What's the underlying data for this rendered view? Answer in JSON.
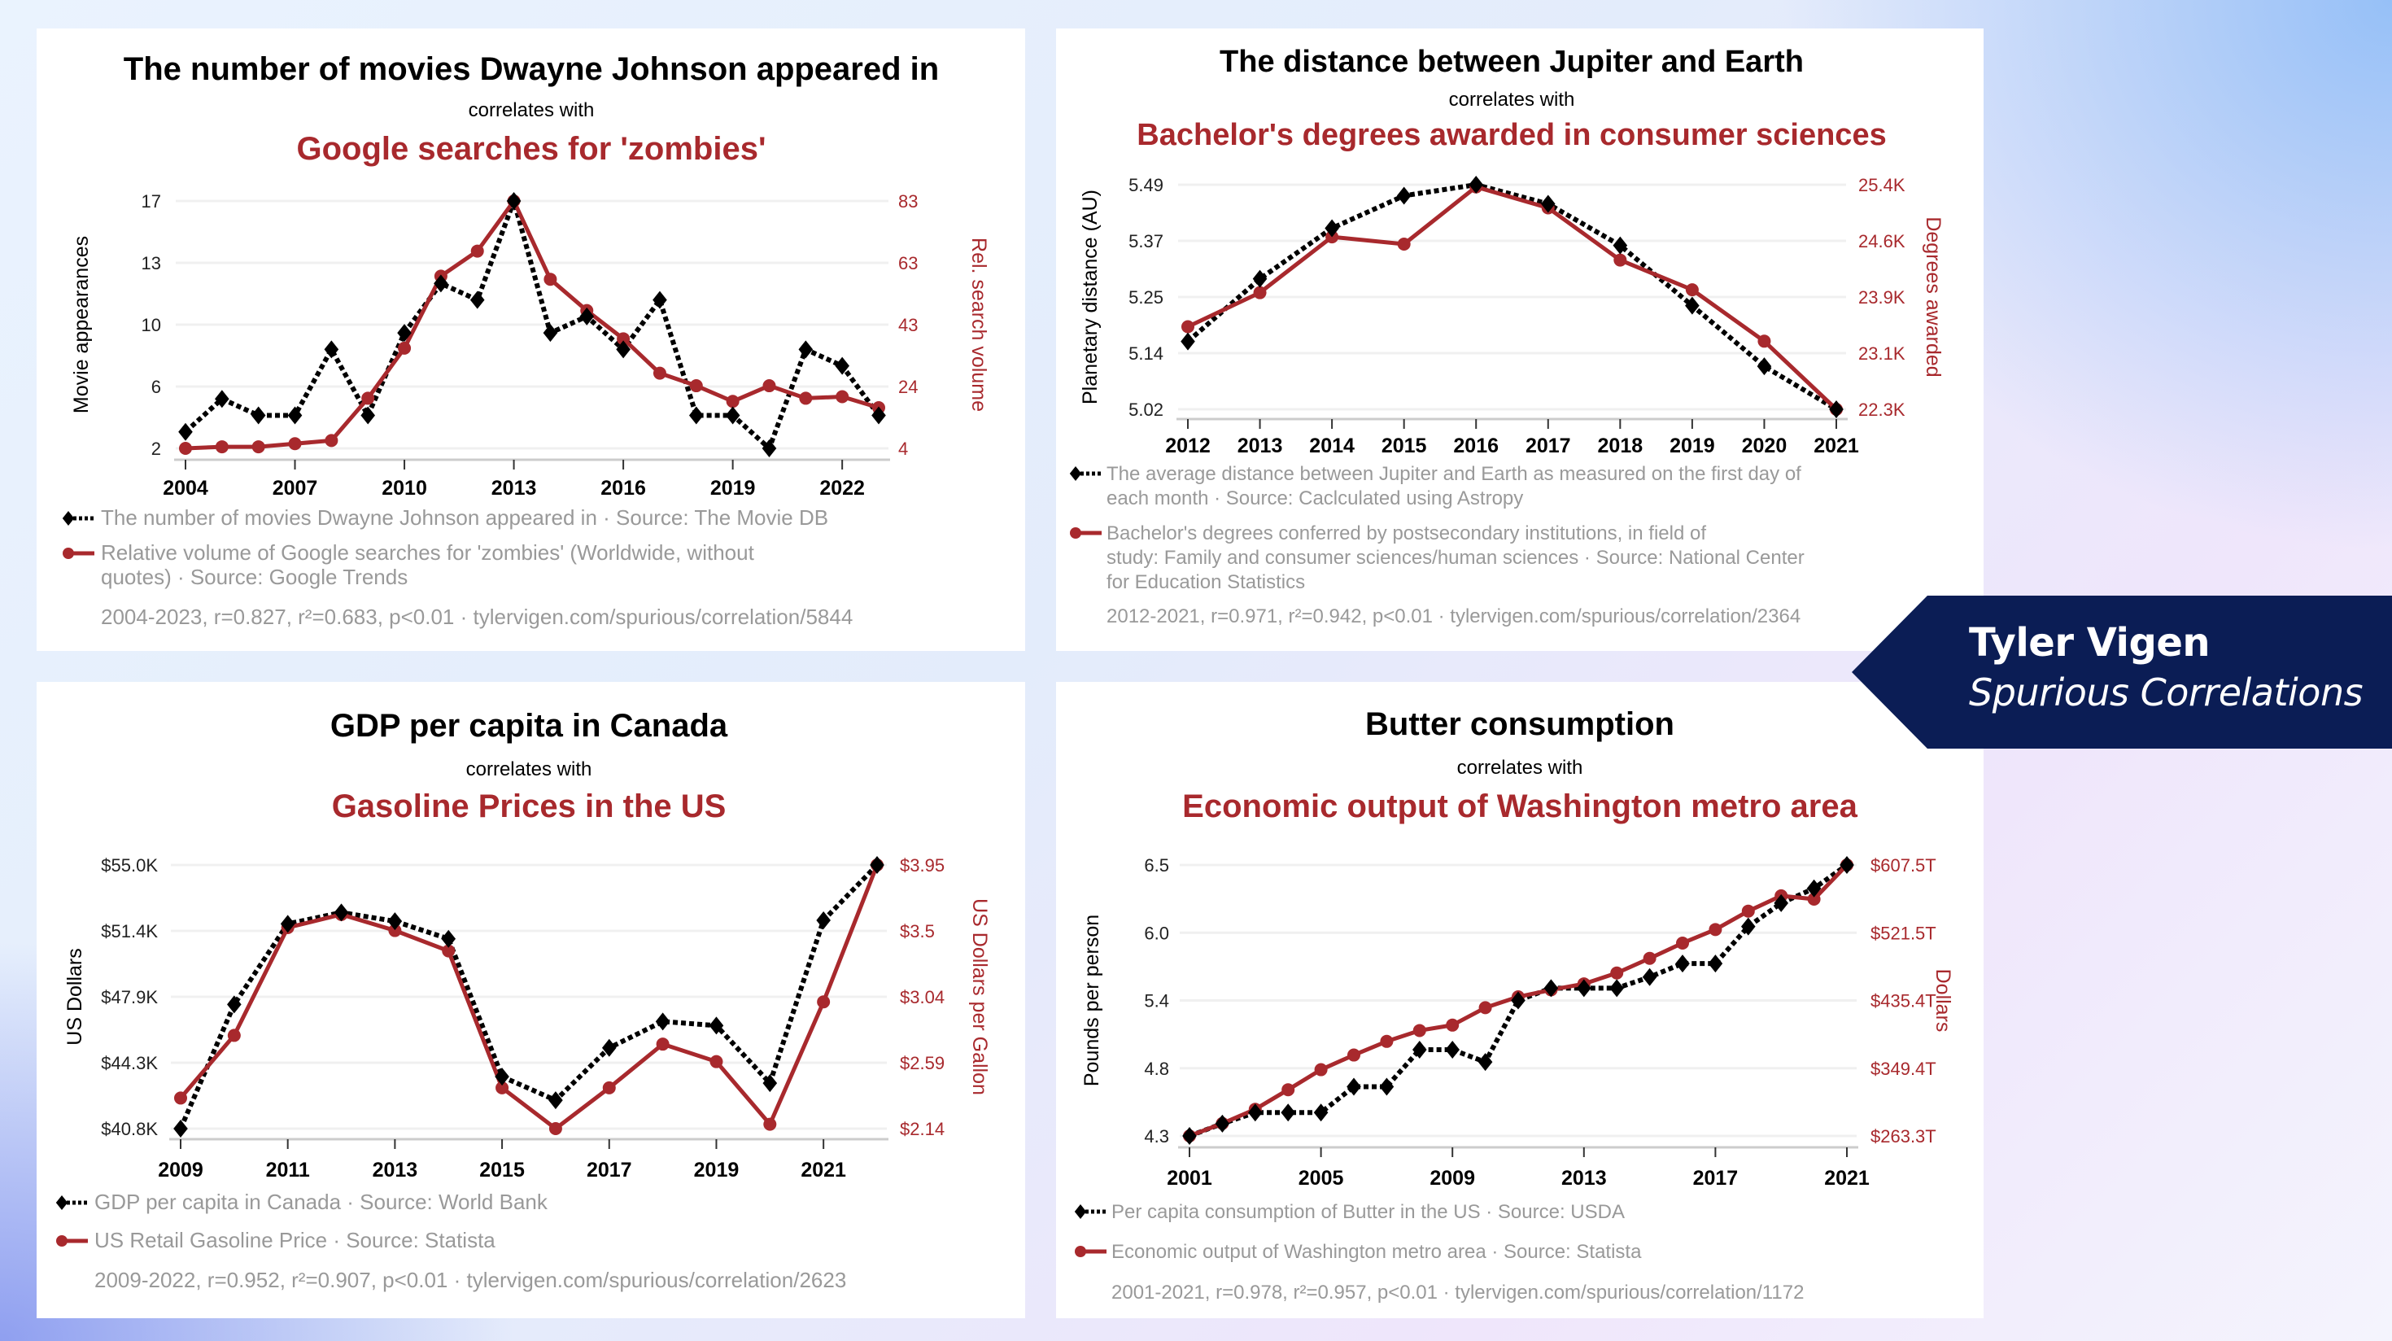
{
  "banner": {
    "author": "Tyler Vigen",
    "subtitle": "Spurious Correlations",
    "color": "#0b1d55"
  },
  "colors": {
    "series_black": "#000000",
    "series_red": "#a8292d",
    "legend_text": "#999999",
    "grid": "#f0f0f0"
  },
  "chart_data": [
    {
      "type": "line",
      "title": "The number of movies Dwayne Johnson appeared in",
      "correlates_label": "correlates with",
      "subtitle": "Google searches for 'zombies'",
      "x": [
        2004,
        2005,
        2006,
        2007,
        2008,
        2009,
        2010,
        2011,
        2012,
        2013,
        2014,
        2015,
        2016,
        2017,
        2018,
        2019,
        2020,
        2021,
        2022,
        2023
      ],
      "xticks": [
        "2004",
        "2007",
        "2010",
        "2013",
        "2016",
        "2019",
        "2022"
      ],
      "ylabel": "Movie appearances",
      "ylim": [
        2,
        17
      ],
      "yticks": [
        "2",
        "6",
        "10",
        "13",
        "17"
      ],
      "ylabel_right": "Rel. search volume",
      "ylim_right": [
        4,
        83
      ],
      "yticks_right": [
        "4",
        "24",
        "43",
        "63",
        "83"
      ],
      "grid": true,
      "series": [
        {
          "name": "The number of movies Dwayne Johnson appeared in · Source: The Movie DB",
          "axis": "left",
          "style": "dashed-diamond",
          "values": [
            3,
            5,
            4,
            4,
            8,
            4,
            9,
            12,
            11,
            17,
            9,
            10,
            8,
            11,
            4,
            4,
            2,
            8,
            7,
            4
          ]
        },
        {
          "name": "Relative volume of Google searches for 'zombies' (Worldwide, without quotes) · Source: Google Trends",
          "axis": "right",
          "style": "solid-circle",
          "values": [
            4,
            4.5,
            4.5,
            5.5,
            6.5,
            20,
            36,
            59,
            67,
            83,
            58,
            48,
            39,
            28,
            24,
            19,
            24,
            20,
            20.5,
            17
          ]
        }
      ],
      "legend": [
        [
          "The number of movies Dwayne Johnson appeared in · Source: The Movie DB"
        ],
        [
          "Relative volume of Google searches for 'zombies' (Worldwide, without",
          "quotes) · Source: Google Trends"
        ]
      ],
      "stats": "2004-2023, r=0.827, r²=0.683, p<0.01 · tylervigen.com/spurious/correlation/5844"
    },
    {
      "type": "line",
      "title": "The distance between Jupiter and Earth",
      "correlates_label": "correlates with",
      "subtitle": "Bachelor's degrees awarded in consumer sciences",
      "x": [
        2012,
        2013,
        2014,
        2015,
        2016,
        2017,
        2018,
        2019,
        2020,
        2021
      ],
      "xticks": [
        "2012",
        "2013",
        "2014",
        "2015",
        "2016",
        "2017",
        "2018",
        "2019",
        "2020",
        "2021"
      ],
      "ylabel": "Planetary distance (AU)",
      "ylim": [
        5.02,
        5.49
      ],
      "yticks": [
        "5.02",
        "5.14",
        "5.25",
        "5.37",
        "5.49"
      ],
      "ylabel_right": "Degrees awarded",
      "ylim_right": [
        22300,
        25400
      ],
      "yticks_right": [
        "22.3K",
        "23.1K",
        "23.9K",
        "24.6K",
        "25.4K"
      ],
      "grid": true,
      "series": [
        {
          "name": "The average distance between Jupiter and Earth as measured on the first day of each month · Source: Caclculated using Astropy",
          "axis": "left",
          "style": "dashed-diamond",
          "values": [
            5.162,
            5.293,
            5.399,
            5.467,
            5.49,
            5.45,
            5.363,
            5.237,
            5.11,
            5.02
          ]
        },
        {
          "name": "Bachelor's degrees conferred by postsecondary institutions, in field of study: Family and consumer sciences/human sciences · Source: National Center for Education Statistics",
          "axis": "right",
          "style": "solid-circle",
          "values": [
            23440,
            23910,
            24680,
            24580,
            25370,
            25080,
            24360,
            23950,
            23240,
            22300
          ]
        }
      ],
      "legend": [
        [
          "The average distance between Jupiter and Earth as measured on the first day of",
          "each month · Source: Caclculated using Astropy"
        ],
        [
          "Bachelor's degrees conferred by postsecondary institutions, in field of",
          "study: Family and consumer sciences/human sciences · Source: National Center",
          "for Education Statistics"
        ]
      ],
      "stats": "2012-2021, r=0.971, r²=0.942, p<0.01 · tylervigen.com/spurious/correlation/2364"
    },
    {
      "type": "line",
      "title": "GDP per capita in Canada",
      "correlates_label": "correlates with",
      "subtitle": "Gasoline Prices in the US",
      "x": [
        2009,
        2010,
        2011,
        2012,
        2013,
        2014,
        2015,
        2016,
        2017,
        2018,
        2019,
        2020,
        2021,
        2022
      ],
      "xticks": [
        "2009",
        "2011",
        "2013",
        "2015",
        "2017",
        "2019",
        "2021"
      ],
      "ylabel": "US Dollars",
      "ylim": [
        40800,
        55000
      ],
      "yticks": [
        "$40.8K",
        "$44.3K",
        "$47.9K",
        "$51.4K",
        "$55.0K"
      ],
      "ylabel_right": "US Dollars per Gallon",
      "ylim_right": [
        2.14,
        3.95
      ],
      "yticks_right": [
        "$2.14",
        "$2.59",
        "$3.04",
        "$3.5",
        "$3.95"
      ],
      "grid": true,
      "series": [
        {
          "name": "GDP per capita in Canada · Source: World Bank",
          "axis": "left",
          "style": "dashed-diamond",
          "values": [
            40800,
            47490,
            51830,
            52440,
            51970,
            51020,
            43600,
            42330,
            45150,
            46570,
            46350,
            43250,
            52020,
            55000
          ]
        },
        {
          "name": "US Retail Gasoline Price · Source: Statista",
          "axis": "right",
          "style": "solid-circle",
          "values": [
            2.35,
            2.78,
            3.52,
            3.61,
            3.5,
            3.36,
            2.42,
            2.14,
            2.42,
            2.72,
            2.6,
            2.17,
            3.01,
            3.95
          ]
        }
      ],
      "legend": [
        [
          "GDP per capita in Canada · Source: World Bank"
        ],
        [
          "US Retail Gasoline Price · Source: Statista"
        ]
      ],
      "stats": "2009-2022, r=0.952, r²=0.907, p<0.01 · tylervigen.com/spurious/correlation/2623"
    },
    {
      "type": "line",
      "title": "Butter consumption",
      "correlates_label": "correlates with",
      "subtitle": "Economic output of Washington metro area",
      "x": [
        2001,
        2002,
        2003,
        2004,
        2005,
        2006,
        2007,
        2008,
        2009,
        2010,
        2011,
        2012,
        2013,
        2014,
        2015,
        2016,
        2017,
        2018,
        2019,
        2020,
        2021
      ],
      "xticks": [
        "2001",
        "2005",
        "2009",
        "2013",
        "2017",
        "2021"
      ],
      "ylabel": "Pounds per person",
      "ylim": [
        4.3,
        6.5
      ],
      "yticks": [
        "4.3",
        "4.8",
        "5.4",
        "6.0",
        "6.5"
      ],
      "ylabel_right": "Dollars",
      "ylim_right": [
        263.3,
        607.5
      ],
      "yticks_right": [
        "$263.3T",
        "$349.4T",
        "$435.4T",
        "$521.5T",
        "$607.5T"
      ],
      "grid": true,
      "series": [
        {
          "name": "Per capita consumption of Butter in the US · Source: USDA",
          "axis": "left",
          "style": "dashed-diamond",
          "values": [
            4.3,
            4.4,
            4.49,
            4.49,
            4.49,
            4.7,
            4.7,
            5.0,
            5.0,
            4.9,
            5.4,
            5.5,
            5.5,
            5.5,
            5.59,
            5.7,
            5.7,
            6.0,
            6.19,
            6.31,
            6.5
          ]
        },
        {
          "name": "Economic output of Washington metro area · Source: Statista",
          "axis": "right",
          "style": "solid-circle",
          "values": [
            263.3,
            279.2,
            297.2,
            322.0,
            347.5,
            366.1,
            383.4,
            397.2,
            404.1,
            426.2,
            440.0,
            448.9,
            456.5,
            470.3,
            488.9,
            508.3,
            525.5,
            548.9,
            568.3,
            564.1,
            607.5
          ]
        }
      ],
      "legend": [
        [
          "Per capita consumption of Butter in the US · Source: USDA"
        ],
        [
          "Economic output of Washington metro area · Source: Statista"
        ]
      ],
      "stats": "2001-2021, r=0.978, r²=0.957, p<0.01 · tylervigen.com/spurious/correlation/1172"
    }
  ]
}
